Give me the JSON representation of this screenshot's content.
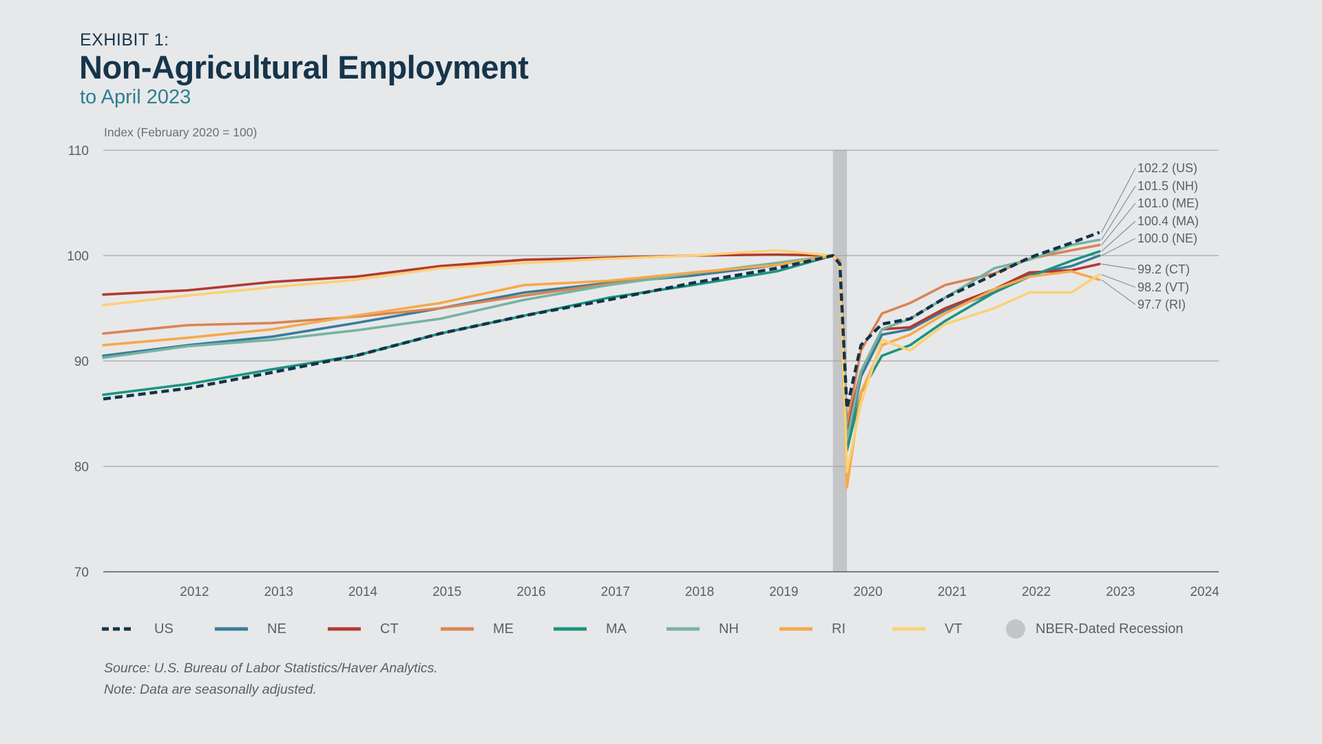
{
  "header": {
    "exhibit": "EXHIBIT 1:",
    "title": "Non-Agricultural Employment",
    "subtitle": "to April 2023"
  },
  "chart_data": {
    "type": "line",
    "title": "Non-Agricultural Employment",
    "subtitle": "to April 2023",
    "ylabel": "Index (February 2020 = 100)",
    "ylim": [
      70,
      110
    ],
    "yticks": [
      70,
      80,
      90,
      100,
      110
    ],
    "xlim": [
      "2011-06",
      "2024-09"
    ],
    "xticks": [
      "2012",
      "2013",
      "2014",
      "2015",
      "2016",
      "2017",
      "2018",
      "2019",
      "2020",
      "2021",
      "2022",
      "2023",
      "2024"
    ],
    "grid": "horizontal",
    "legend_position": "bottom",
    "recession": {
      "label": "NBER-Dated Recession",
      "start": "2020-02",
      "end": "2020-04",
      "color": "#c4c5c7"
    },
    "series": [
      {
        "name": "US",
        "color": "#13344a",
        "dash": true,
        "points": [
          [
            "2011-06",
            86.4
          ],
          [
            "2012-06",
            87.4
          ],
          [
            "2013-06",
            88.9
          ],
          [
            "2014-06",
            90.5
          ],
          [
            "2015-06",
            92.6
          ],
          [
            "2016-06",
            94.3
          ],
          [
            "2017-06",
            95.8
          ],
          [
            "2018-06",
            97.4
          ],
          [
            "2019-06",
            98.8
          ],
          [
            "2020-02",
            100
          ],
          [
            "2020-03",
            99.2
          ],
          [
            "2020-04",
            85.5
          ],
          [
            "2020-06",
            91.5
          ],
          [
            "2020-09",
            93.5
          ],
          [
            "2021-01",
            94
          ],
          [
            "2021-06",
            96
          ],
          [
            "2022-01",
            98.2
          ],
          [
            "2022-06",
            99.8
          ],
          [
            "2022-12",
            101.2
          ],
          [
            "2023-04",
            102.2
          ]
        ]
      },
      {
        "name": "NE",
        "color": "#3a7c99",
        "dash": false,
        "points": [
          [
            "2011-06",
            90.5
          ],
          [
            "2012-06",
            91.5
          ],
          [
            "2013-06",
            92.3
          ],
          [
            "2014-06",
            93.6
          ],
          [
            "2015-06",
            95
          ],
          [
            "2016-06",
            96.5
          ],
          [
            "2017-06",
            97.4
          ],
          [
            "2018-06",
            98.1
          ],
          [
            "2019-06",
            99.1
          ],
          [
            "2020-02",
            100
          ],
          [
            "2020-03",
            99.2
          ],
          [
            "2020-04",
            82
          ],
          [
            "2020-06",
            88.5
          ],
          [
            "2020-09",
            92.5
          ],
          [
            "2021-01",
            93
          ],
          [
            "2021-06",
            94.8
          ],
          [
            "2022-01",
            96.5
          ],
          [
            "2022-06",
            98.2
          ],
          [
            "2022-12",
            99
          ],
          [
            "2023-04",
            100
          ]
        ]
      },
      {
        "name": "CT",
        "color": "#b23a2f",
        "dash": false,
        "points": [
          [
            "2011-06",
            96.3
          ],
          [
            "2012-06",
            96.7
          ],
          [
            "2013-06",
            97.5
          ],
          [
            "2014-06",
            98
          ],
          [
            "2015-06",
            99
          ],
          [
            "2016-06",
            99.6
          ],
          [
            "2017-06",
            99.8
          ],
          [
            "2018-06",
            100
          ],
          [
            "2019-06",
            100.1
          ],
          [
            "2020-02",
            100
          ],
          [
            "2020-03",
            99.3
          ],
          [
            "2020-04",
            83.5
          ],
          [
            "2020-06",
            89
          ],
          [
            "2020-09",
            93
          ],
          [
            "2021-01",
            93.2
          ],
          [
            "2021-06",
            95
          ],
          [
            "2022-01",
            96.8
          ],
          [
            "2022-06",
            98.4
          ],
          [
            "2022-12",
            98.6
          ],
          [
            "2023-04",
            99.2
          ]
        ]
      },
      {
        "name": "ME",
        "color": "#db8452",
        "dash": false,
        "points": [
          [
            "2011-06",
            92.6
          ],
          [
            "2012-06",
            93.4
          ],
          [
            "2013-06",
            93.6
          ],
          [
            "2014-06",
            94.2
          ],
          [
            "2015-06",
            95
          ],
          [
            "2016-06",
            96.2
          ],
          [
            "2017-06",
            97.3
          ],
          [
            "2018-06",
            98.3
          ],
          [
            "2019-06",
            99.2
          ],
          [
            "2020-02",
            100
          ],
          [
            "2020-03",
            99.5
          ],
          [
            "2020-04",
            84
          ],
          [
            "2020-06",
            91
          ],
          [
            "2020-09",
            94.5
          ],
          [
            "2021-01",
            95.5
          ],
          [
            "2021-06",
            97.2
          ],
          [
            "2022-01",
            98.3
          ],
          [
            "2022-06",
            99.7
          ],
          [
            "2022-12",
            100.5
          ],
          [
            "2023-04",
            101
          ]
        ]
      },
      {
        "name": "MA",
        "color": "#1b9480",
        "dash": false,
        "points": [
          [
            "2011-06",
            86.8
          ],
          [
            "2012-06",
            87.8
          ],
          [
            "2013-06",
            89.2
          ],
          [
            "2014-06",
            90.5
          ],
          [
            "2015-06",
            92.6
          ],
          [
            "2016-06",
            94.3
          ],
          [
            "2017-06",
            96
          ],
          [
            "2018-06",
            97.2
          ],
          [
            "2019-06",
            98.5
          ],
          [
            "2020-02",
            100
          ],
          [
            "2020-03",
            99.2
          ],
          [
            "2020-04",
            81.5
          ],
          [
            "2020-06",
            87
          ],
          [
            "2020-09",
            90.5
          ],
          [
            "2021-01",
            91.5
          ],
          [
            "2021-06",
            93.8
          ],
          [
            "2022-01",
            96.5
          ],
          [
            "2022-06",
            98
          ],
          [
            "2022-12",
            99.5
          ],
          [
            "2023-04",
            100.4
          ]
        ]
      },
      {
        "name": "NH",
        "color": "#76b3a3",
        "dash": false,
        "points": [
          [
            "2011-06",
            90.3
          ],
          [
            "2012-06",
            91.4
          ],
          [
            "2013-06",
            92
          ],
          [
            "2014-06",
            92.9
          ],
          [
            "2015-06",
            94
          ],
          [
            "2016-06",
            95.8
          ],
          [
            "2017-06",
            97.2
          ],
          [
            "2018-06",
            98.3
          ],
          [
            "2019-06",
            99.3
          ],
          [
            "2020-02",
            100
          ],
          [
            "2020-03",
            99.3
          ],
          [
            "2020-04",
            82.5
          ],
          [
            "2020-06",
            89
          ],
          [
            "2020-09",
            93
          ],
          [
            "2021-01",
            94
          ],
          [
            "2021-06",
            96
          ],
          [
            "2022-01",
            98.8
          ],
          [
            "2022-06",
            99.6
          ],
          [
            "2022-12",
            101
          ],
          [
            "2023-04",
            101.5
          ]
        ]
      },
      {
        "name": "RI",
        "color": "#f6a94b",
        "dash": false,
        "points": [
          [
            "2011-06",
            91.5
          ],
          [
            "2012-06",
            92.2
          ],
          [
            "2013-06",
            93
          ],
          [
            "2014-06",
            94.3
          ],
          [
            "2015-06",
            95.5
          ],
          [
            "2016-06",
            97.2
          ],
          [
            "2017-06",
            97.6
          ],
          [
            "2018-06",
            98.4
          ],
          [
            "2019-06",
            99.1
          ],
          [
            "2020-02",
            100
          ],
          [
            "2020-03",
            99.2
          ],
          [
            "2020-04",
            78
          ],
          [
            "2020-06",
            87
          ],
          [
            "2020-09",
            91.5
          ],
          [
            "2021-01",
            92.5
          ],
          [
            "2021-06",
            94.5
          ],
          [
            "2022-01",
            96.8
          ],
          [
            "2022-06",
            98
          ],
          [
            "2022-12",
            98.5
          ],
          [
            "2023-04",
            97.7
          ]
        ]
      },
      {
        "name": "VT",
        "color": "#fbd177",
        "dash": false,
        "points": [
          [
            "2011-06",
            95.3
          ],
          [
            "2012-06",
            96.2
          ],
          [
            "2013-06",
            97
          ],
          [
            "2014-06",
            97.7
          ],
          [
            "2015-06",
            98.8
          ],
          [
            "2016-06",
            99.3
          ],
          [
            "2017-06",
            99.7
          ],
          [
            "2018-06",
            100
          ],
          [
            "2019-06",
            100.5
          ],
          [
            "2020-02",
            100
          ],
          [
            "2020-03",
            99.3
          ],
          [
            "2020-04",
            79.5
          ],
          [
            "2020-06",
            86
          ],
          [
            "2020-09",
            92
          ],
          [
            "2021-01",
            91
          ],
          [
            "2021-06",
            93.5
          ],
          [
            "2022-01",
            95
          ],
          [
            "2022-06",
            96.5
          ],
          [
            "2022-12",
            96.5
          ],
          [
            "2023-04",
            98.2
          ]
        ]
      }
    ],
    "end_labels": [
      "102.2 (US)",
      "101.5 (NH)",
      "101.0 (ME)",
      "100.4 (MA)",
      "100.0 (NE)",
      "99.2 (CT)",
      "98.2 (VT)",
      "97.7 (RI)"
    ]
  },
  "legend": {
    "items": [
      {
        "label": "US",
        "color": "#13344a",
        "dash": true
      },
      {
        "label": "NE",
        "color": "#3a7c99",
        "dash": false
      },
      {
        "label": "CT",
        "color": "#b23a2f",
        "dash": false
      },
      {
        "label": "ME",
        "color": "#db8452",
        "dash": false
      },
      {
        "label": "MA",
        "color": "#1b9480",
        "dash": false
      },
      {
        "label": "NH",
        "color": "#76b3a3",
        "dash": false
      },
      {
        "label": "RI",
        "color": "#f6a94b",
        "dash": false
      },
      {
        "label": "VT",
        "color": "#fbd177",
        "dash": false
      },
      {
        "label": "NBER-Dated Recession",
        "color": "#c4c5c7",
        "circle": true
      }
    ]
  },
  "notes": {
    "source": "Source: U.S. Bureau of Labor Statistics/Haver Analytics.",
    "note": "Note: Data are seasonally adjusted."
  }
}
